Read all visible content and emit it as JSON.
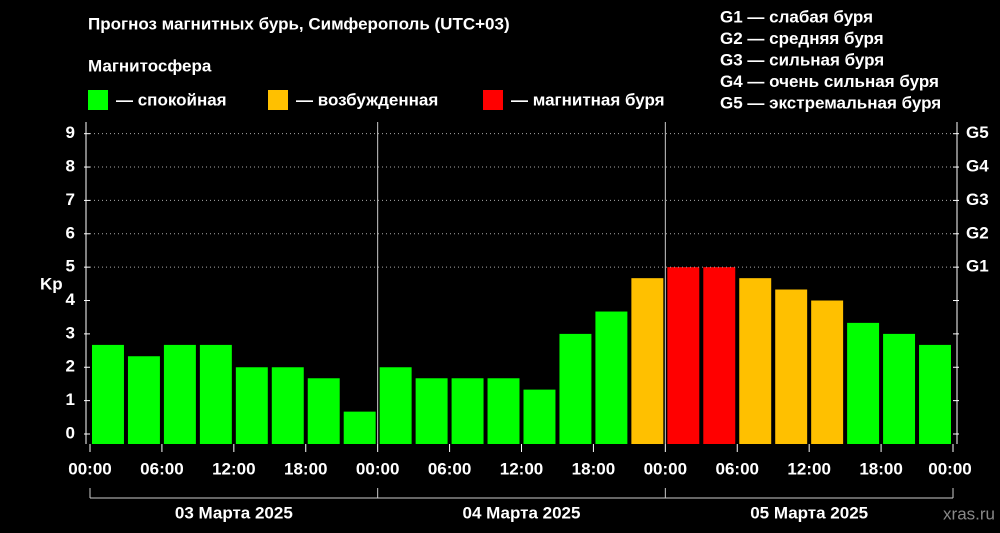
{
  "chart_data": {
    "type": "bar",
    "title": "Прогноз магнитных бурь, Симферополь (UTC+03)",
    "legend_title": "Магнитосфера",
    "legend": [
      {
        "name": "— спокойная",
        "color": "#00ff00"
      },
      {
        "name": "— возбужденная",
        "color": "#ffc000"
      },
      {
        "name": "— магнитная буря",
        "color": "#ff0000"
      }
    ],
    "storm_levels": [
      "G1 — слабая буря",
      "G2 — средняя буря",
      "G3 — сильная буря",
      "G4 — очень сильная буря",
      "G5 — экстремальная буря"
    ],
    "ylabel": "Kp",
    "x": [
      0,
      3,
      6,
      9,
      12,
      15,
      18,
      21,
      24,
      27,
      30,
      33,
      36,
      39,
      42,
      45,
      48,
      51,
      54,
      57,
      60,
      63,
      66,
      69
    ],
    "values": [
      2.67,
      2.33,
      2.67,
      2.67,
      2.0,
      2.0,
      1.67,
      0.67,
      2.0,
      1.67,
      1.67,
      1.67,
      1.33,
      3.0,
      3.67,
      4.67,
      5.0,
      5.0,
      4.67,
      4.33,
      4.0,
      3.33,
      3.0,
      2.67
    ],
    "colors": [
      "#00ff00",
      "#00ff00",
      "#00ff00",
      "#00ff00",
      "#00ff00",
      "#00ff00",
      "#00ff00",
      "#00ff00",
      "#00ff00",
      "#00ff00",
      "#00ff00",
      "#00ff00",
      "#00ff00",
      "#00ff00",
      "#00ff00",
      "#ffc000",
      "#ff0000",
      "#ff0000",
      "#ffc000",
      "#ffc000",
      "#ffc000",
      "#00ff00",
      "#00ff00",
      "#00ff00"
    ],
    "xlim": [
      0,
      72
    ],
    "xticks": [
      {
        "value": 0,
        "label": "00:00"
      },
      {
        "value": 6,
        "label": "06:00"
      },
      {
        "value": 12,
        "label": "12:00"
      },
      {
        "value": 18,
        "label": "18:00"
      },
      {
        "value": 24,
        "label": "00:00"
      },
      {
        "value": 30,
        "label": "06:00"
      },
      {
        "value": 36,
        "label": "12:00"
      },
      {
        "value": 42,
        "label": "18:00"
      },
      {
        "value": 48,
        "label": "00:00"
      },
      {
        "value": 54,
        "label": "06:00"
      },
      {
        "value": 60,
        "label": "12:00"
      },
      {
        "value": 66,
        "label": "18:00"
      },
      {
        "value": 72,
        "label": "00:00"
      }
    ],
    "day_bounds": [
      0,
      24,
      48,
      72
    ],
    "days": [
      "03 Марта 2025",
      "04 Марта 2025",
      "05 Марта 2025"
    ],
    "ylim": [
      -0.3,
      9.35
    ],
    "yticks": [
      0,
      1,
      2,
      3,
      4,
      5,
      6,
      7,
      8,
      9
    ],
    "y2ticks": [
      {
        "value": 5,
        "label": "G1"
      },
      {
        "value": 6,
        "label": "G2"
      },
      {
        "value": 7,
        "label": "G3"
      },
      {
        "value": 8,
        "label": "G4"
      },
      {
        "value": 9,
        "label": "G5"
      }
    ],
    "grid": true,
    "watermark": "xras.ru"
  }
}
